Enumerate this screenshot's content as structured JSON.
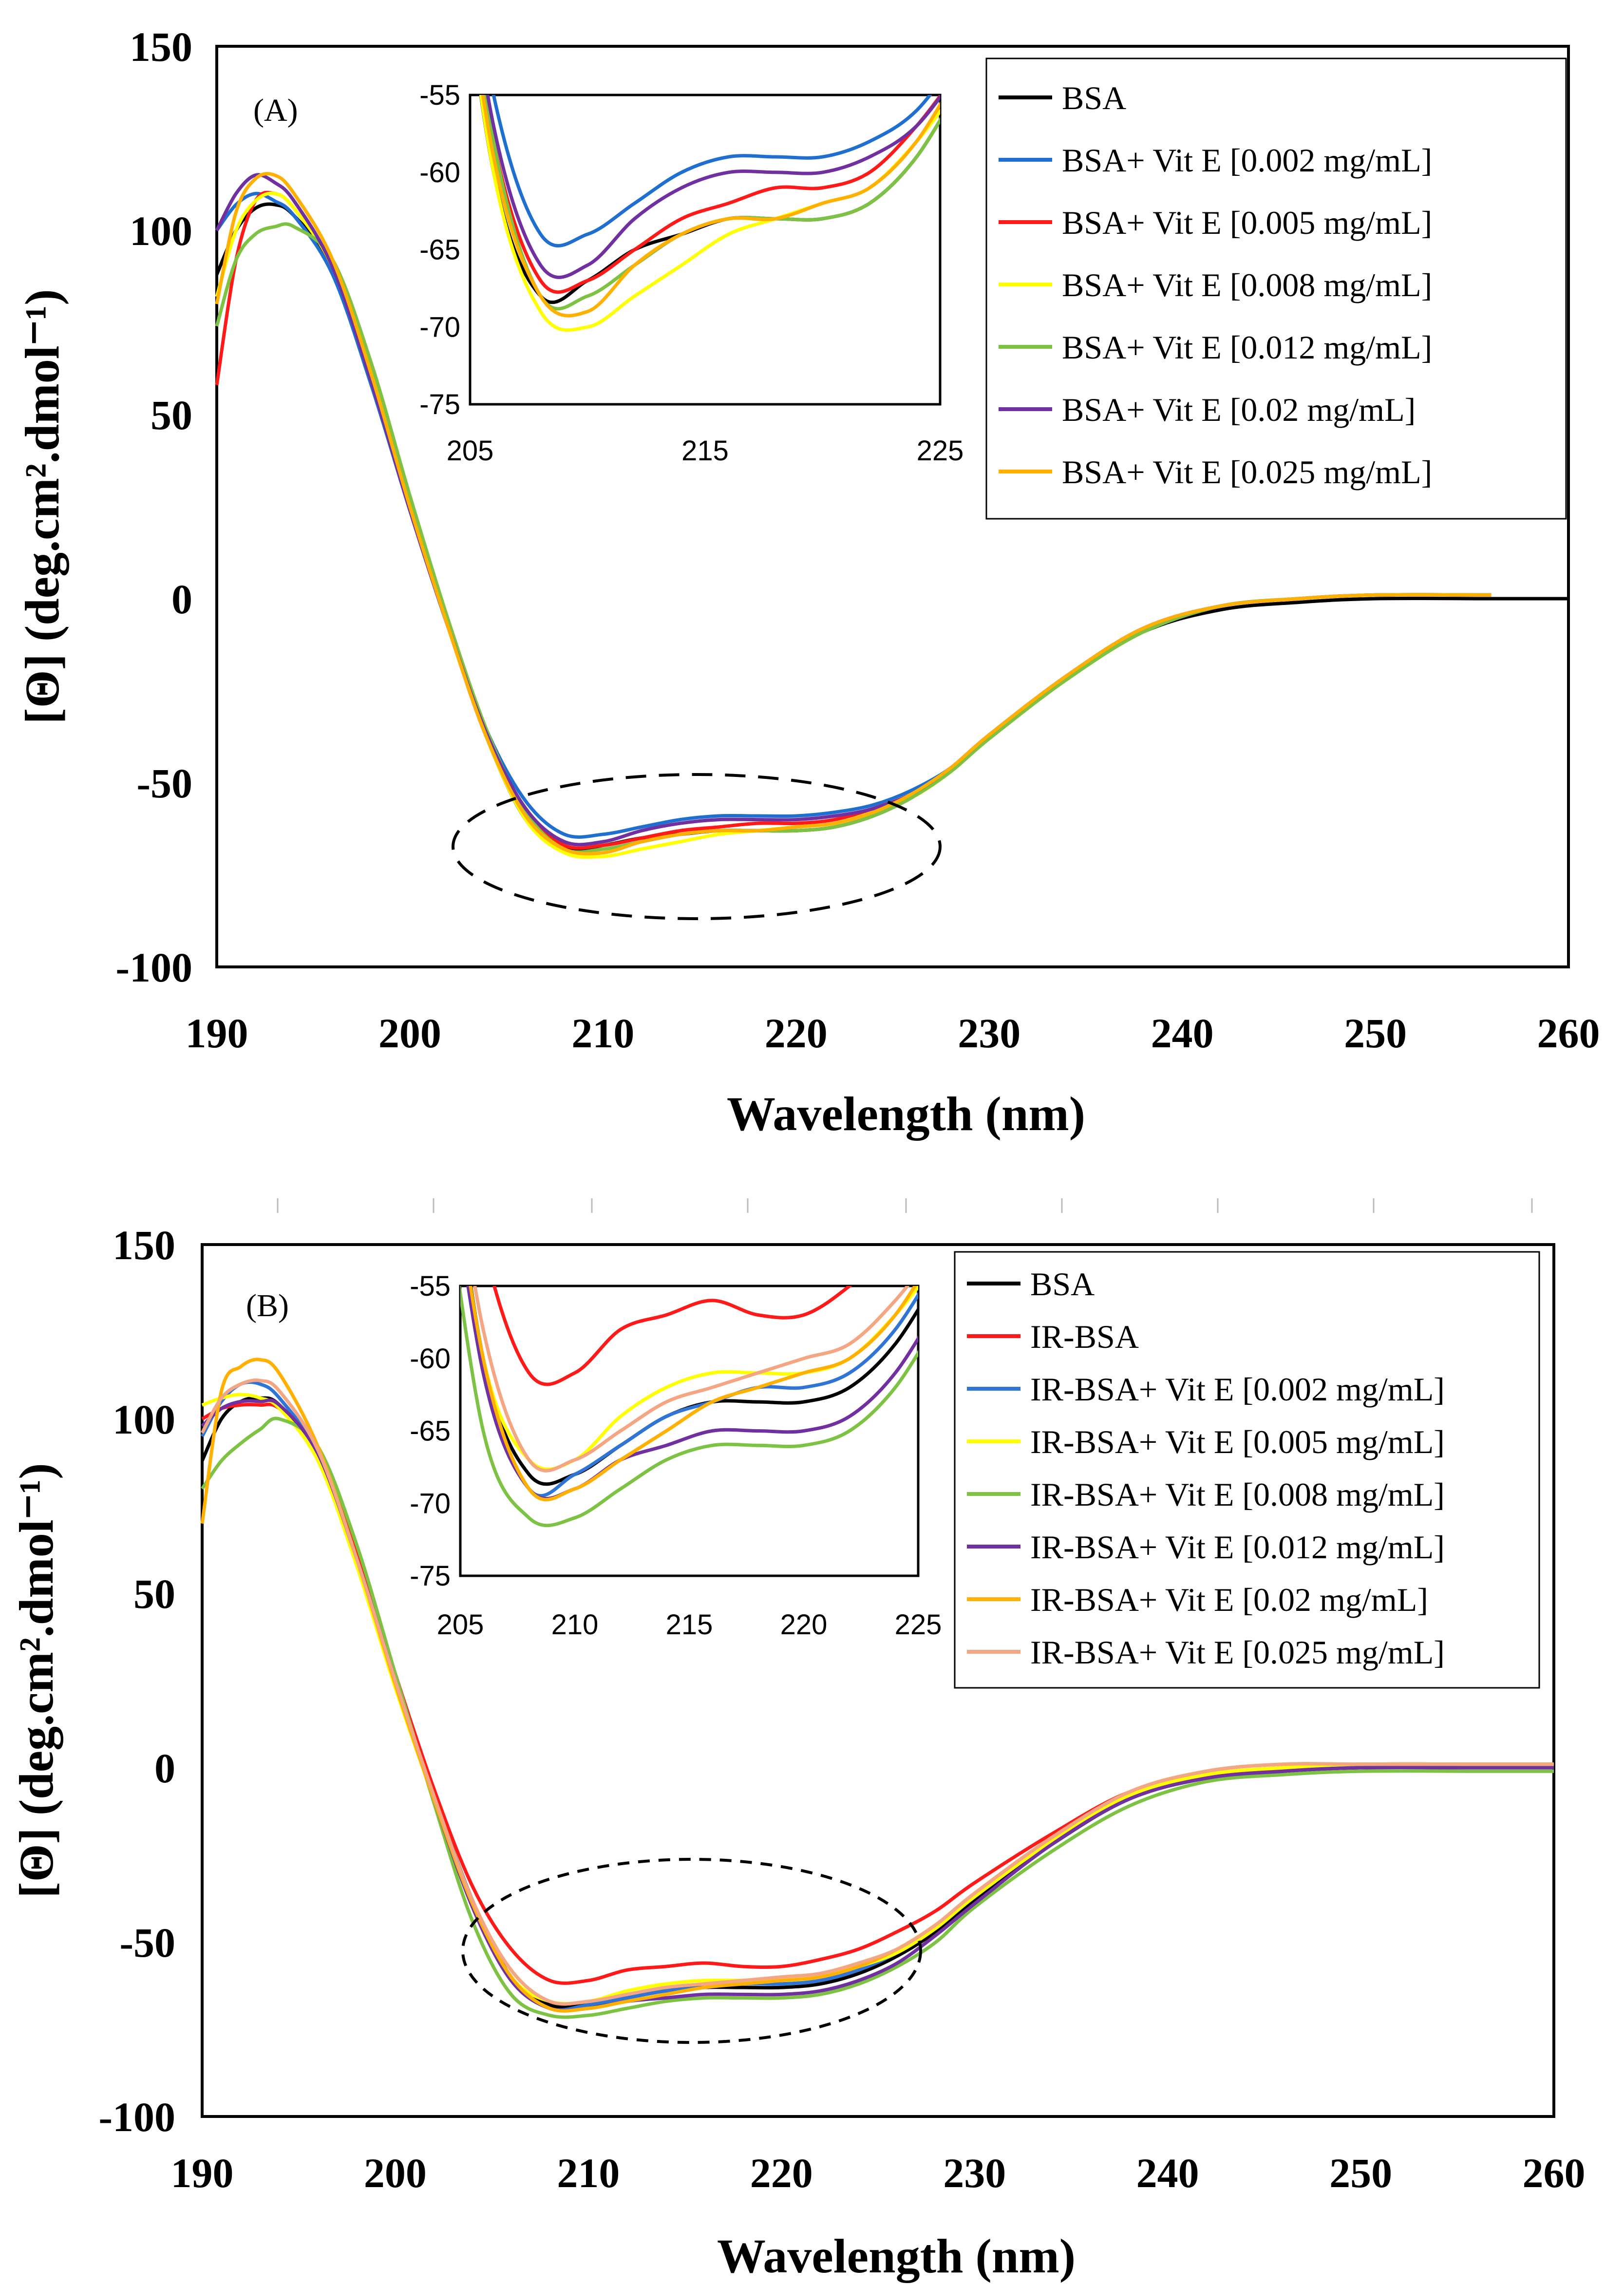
{
  "chart_data": [
    {
      "type": "line",
      "panel_label": "(A)",
      "xlabel": "Wavelength (nm)",
      "ylabel": "[Θ] (deg.cm².dmol⁻¹)",
      "xlim": [
        190,
        260
      ],
      "ylim": [
        -100,
        150
      ],
      "xticks": [
        "190",
        "200",
        "210",
        "220",
        "230",
        "240",
        "250",
        "260"
      ],
      "yticks": [
        "150",
        "100",
        "50",
        "0",
        "-50",
        "-100"
      ],
      "series": [
        {
          "name": "BSA",
          "color": "#000000",
          "x": [
            190,
            191,
            192,
            193,
            194,
            196,
            198,
            200,
            202,
            204,
            206,
            208,
            210,
            212,
            214,
            216,
            218,
            220,
            222,
            224,
            226,
            228,
            230,
            234,
            238,
            242,
            246,
            250,
            256,
            260
          ],
          "y": [
            88,
            100,
            106,
            107,
            104,
            90,
            60,
            25,
            -8,
            -38,
            -60,
            -68,
            -67,
            -65,
            -64,
            -63,
            -63,
            -63,
            -62,
            -59,
            -54,
            -47,
            -38,
            -22,
            -9,
            -3,
            -1,
            0,
            0,
            0
          ]
        },
        {
          "name": "BSA+ Vit E [0.002 mg/mL]",
          "color": "#1f6fd1",
          "x": [
            190,
            191,
            192,
            193,
            194,
            196,
            198,
            200,
            202,
            204,
            206,
            208,
            210,
            212,
            214,
            216,
            218,
            220,
            222,
            224,
            226,
            228,
            230,
            234,
            238,
            242,
            246,
            250,
            256
          ],
          "y": [
            100,
            107,
            110,
            108,
            104,
            88,
            58,
            24,
            -8,
            -36,
            -55,
            -64,
            -64,
            -62,
            -60,
            -59,
            -59,
            -59,
            -58,
            -56,
            -52,
            -46,
            -37,
            -21,
            -8,
            -2,
            0,
            1,
            1
          ]
        },
        {
          "name": "BSA+ Vit E [0.005 mg/mL]",
          "color": "#ff1a1a",
          "x": [
            190,
            191,
            192,
            193,
            194,
            196,
            198,
            200,
            202,
            204,
            206,
            208,
            210,
            212,
            214,
            216,
            218,
            220,
            222,
            224,
            226,
            228,
            230,
            234,
            238,
            242,
            246,
            250,
            256
          ],
          "y": [
            58,
            92,
            108,
            110,
            106,
            90,
            60,
            25,
            -8,
            -38,
            -58,
            -67,
            -67,
            -65,
            -63,
            -62,
            -61,
            -61,
            -60,
            -57,
            -53,
            -46,
            -37,
            -21,
            -8,
            -2,
            0,
            1,
            1
          ]
        },
        {
          "name": "BSA+ Vit E [0.008 mg/mL]",
          "color": "#ffff00",
          "x": [
            190,
            191,
            192,
            193,
            194,
            196,
            198,
            200,
            202,
            204,
            206,
            208,
            210,
            212,
            214,
            216,
            218,
            220,
            222,
            224,
            226,
            228,
            230,
            234,
            238,
            242,
            246,
            250,
            256
          ],
          "y": [
            82,
            100,
            108,
            110,
            106,
            90,
            60,
            25,
            -8,
            -38,
            -60,
            -69,
            -70,
            -68,
            -66,
            -64,
            -63,
            -62,
            -61,
            -58,
            -54,
            -47,
            -38,
            -22,
            -9,
            -2,
            0,
            1,
            1
          ]
        },
        {
          "name": "BSA+ Vit E [0.012 mg/mL]",
          "color": "#7dc242",
          "x": [
            190,
            191,
            192,
            193,
            194,
            196,
            198,
            200,
            202,
            204,
            206,
            208,
            210,
            212,
            214,
            216,
            218,
            220,
            222,
            224,
            226,
            228,
            230,
            234,
            238,
            242,
            246,
            250,
            256
          ],
          "y": [
            74,
            92,
            99,
            101,
            101,
            92,
            64,
            28,
            -6,
            -36,
            -58,
            -68,
            -68,
            -66,
            -64,
            -63,
            -63,
            -63,
            -62,
            -59,
            -54,
            -47,
            -38,
            -22,
            -9,
            -2,
            0,
            1,
            1
          ]
        },
        {
          "name": "BSA+ Vit E [0.02 mg/mL]",
          "color": "#7030a0",
          "x": [
            190,
            191,
            192,
            193,
            194,
            196,
            198,
            200,
            202,
            204,
            206,
            208,
            210,
            212,
            214,
            216,
            218,
            220,
            222,
            224,
            226,
            228,
            230,
            234,
            238,
            242,
            246,
            250,
            256
          ],
          "y": [
            100,
            110,
            115,
            113,
            108,
            90,
            59,
            24,
            -8,
            -37,
            -57,
            -66,
            -66,
            -63,
            -61,
            -60,
            -60,
            -60,
            -59,
            -57,
            -53,
            -46,
            -37,
            -21,
            -8,
            -2,
            0,
            1,
            1
          ]
        },
        {
          "name": "BSA+ Vit E [0.025 mg/mL]",
          "color": "#ffb000",
          "x": [
            190,
            191,
            192,
            193,
            194,
            196,
            198,
            200,
            202,
            204,
            206,
            208,
            210,
            212,
            214,
            216,
            218,
            220,
            222,
            224,
            226,
            228,
            230,
            234,
            238,
            242,
            246,
            250,
            256
          ],
          "y": [
            80,
            105,
            114,
            115,
            110,
            92,
            61,
            25,
            -8,
            -38,
            -59,
            -68,
            -69,
            -66,
            -64,
            -63,
            -63,
            -62,
            -61,
            -58,
            -53,
            -46,
            -37,
            -21,
            -8,
            -2,
            0,
            1,
            1
          ]
        }
      ],
      "inset": {
        "xlim": [
          205,
          225
        ],
        "ylim": [
          -75,
          -55
        ],
        "xticks": [
          "205",
          "215",
          "225"
        ],
        "yticks": [
          "-55",
          "-60",
          "-65",
          "-70",
          "-75"
        ]
      },
      "annotation": "dashed ellipse highlighting the 205-225 nm minima region"
    },
    {
      "type": "line",
      "panel_label": "(B)",
      "xlabel": "Wavelength (nm)",
      "ylabel": "[Θ] (deg.cm².dmol⁻¹)",
      "xlim": [
        190,
        260
      ],
      "ylim": [
        -100,
        150
      ],
      "xticks": [
        "190",
        "200",
        "210",
        "220",
        "230",
        "240",
        "250",
        "260"
      ],
      "yticks": [
        "150",
        "100",
        "50",
        "0",
        "-50",
        "-100"
      ],
      "series": [
        {
          "name": "BSA",
          "color": "#000000",
          "x": [
            190,
            191,
            192,
            193,
            194,
            196,
            198,
            200,
            202,
            204,
            206,
            208,
            210,
            212,
            214,
            216,
            218,
            220,
            222,
            224,
            226,
            228,
            230,
            234,
            238,
            242,
            246,
            250,
            256,
            260
          ],
          "y": [
            88,
            100,
            105,
            106,
            104,
            90,
            60,
            25,
            -8,
            -38,
            -60,
            -68,
            -68,
            -66,
            -64,
            -63,
            -63,
            -63,
            -62,
            -59,
            -54,
            -47,
            -38,
            -22,
            -9,
            -3,
            -1,
            0,
            0,
            0
          ]
        },
        {
          "name": "IR-BSA",
          "color": "#ff1a1a",
          "x": [
            190,
            191,
            192,
            193,
            194,
            196,
            198,
            200,
            202,
            204,
            206,
            208,
            210,
            212,
            214,
            216,
            218,
            220,
            222,
            224,
            226,
            228,
            230,
            234,
            238,
            242,
            246,
            250,
            256,
            260
          ],
          "y": [
            100,
            103,
            104,
            104,
            103,
            92,
            63,
            27,
            -6,
            -34,
            -52,
            -61,
            -61,
            -58,
            -57,
            -56,
            -57,
            -57,
            -55,
            -52,
            -47,
            -41,
            -33,
            -19,
            -7,
            -2,
            0,
            1,
            1,
            1
          ]
        },
        {
          "name": "IR-BSA+ Vit E [0.002 mg/mL]",
          "color": "#2e75d6",
          "x": [
            190,
            191,
            192,
            193,
            194,
            196,
            198,
            200,
            202,
            204,
            206,
            208,
            210,
            212,
            214,
            216,
            218,
            220,
            222,
            224,
            226,
            228,
            230,
            234,
            238,
            242,
            246,
            250,
            256,
            260
          ],
          "y": [
            95,
            105,
            110,
            110,
            106,
            90,
            60,
            24,
            -9,
            -39,
            -60,
            -69,
            -68,
            -66,
            -64,
            -63,
            -62,
            -62,
            -61,
            -58,
            -53,
            -46,
            -37,
            -21,
            -8,
            -2,
            0,
            1,
            1,
            1
          ]
        },
        {
          "name": "IR-BSA+ Vit E [0.005 mg/mL]",
          "color": "#ffff00",
          "x": [
            190,
            191,
            192,
            193,
            194,
            196,
            198,
            200,
            202,
            204,
            206,
            208,
            210,
            212,
            214,
            216,
            218,
            220,
            222,
            224,
            226,
            228,
            230,
            234,
            238,
            242,
            246,
            250,
            256,
            260
          ],
          "y": [
            104,
            106,
            107,
            106,
            103,
            88,
            58,
            23,
            -9,
            -39,
            -60,
            -67,
            -67,
            -64,
            -62,
            -61,
            -61,
            -61,
            -60,
            -57,
            -53,
            -46,
            -37,
            -21,
            -8,
            -2,
            0,
            1,
            1,
            1
          ]
        },
        {
          "name": "IR-BSA+ Vit E [0.008 mg/mL]",
          "color": "#7dc242",
          "x": [
            190,
            191,
            192,
            193,
            194,
            196,
            198,
            200,
            202,
            204,
            206,
            208,
            210,
            212,
            214,
            216,
            218,
            220,
            222,
            224,
            226,
            228,
            230,
            234,
            238,
            242,
            246,
            250,
            256,
            260
          ],
          "y": [
            80,
            88,
            93,
            97,
            100,
            92,
            64,
            27,
            -10,
            -44,
            -65,
            -71,
            -71,
            -69,
            -67,
            -66,
            -66,
            -66,
            -65,
            -62,
            -57,
            -50,
            -40,
            -24,
            -11,
            -4,
            -2,
            -1,
            -1,
            -1
          ]
        },
        {
          "name": "IR-BSA+ Vit E [0.012 mg/mL]",
          "color": "#7030a0",
          "x": [
            190,
            191,
            192,
            193,
            194,
            196,
            198,
            200,
            202,
            204,
            206,
            208,
            210,
            212,
            214,
            216,
            218,
            220,
            222,
            224,
            226,
            228,
            230,
            234,
            238,
            242,
            246,
            250,
            256,
            260
          ],
          "y": [
            98,
            103,
            105,
            105,
            104,
            90,
            60,
            25,
            -9,
            -40,
            -61,
            -69,
            -69,
            -67,
            -66,
            -65,
            -65,
            -65,
            -64,
            -61,
            -56,
            -48,
            -39,
            -22,
            -9,
            -3,
            -1,
            0,
            0,
            0
          ]
        },
        {
          "name": "IR-BSA+ Vit E [0.02 mg/mL]",
          "color": "#ffb000",
          "x": [
            190,
            191,
            192,
            193,
            194,
            196,
            198,
            200,
            202,
            204,
            206,
            208,
            210,
            212,
            214,
            216,
            218,
            220,
            222,
            224,
            226,
            228,
            230,
            234,
            238,
            242,
            246,
            250,
            256,
            260
          ],
          "y": [
            70,
            108,
            115,
            117,
            113,
            92,
            60,
            24,
            -9,
            -39,
            -60,
            -69,
            -69,
            -67,
            -65,
            -63,
            -62,
            -61,
            -60,
            -57,
            -52,
            -45,
            -36,
            -20,
            -7,
            -1,
            1,
            1,
            1,
            1
          ]
        },
        {
          "name": "IR-BSA+ Vit E [0.025 mg/mL]",
          "color": "#f4a582",
          "x": [
            190,
            191,
            192,
            193,
            194,
            196,
            198,
            200,
            202,
            204,
            206,
            208,
            210,
            212,
            214,
            216,
            218,
            220,
            222,
            224,
            226,
            228,
            230,
            234,
            238,
            242,
            246,
            250,
            256,
            260
          ],
          "y": [
            96,
            106,
            110,
            111,
            108,
            91,
            60,
            25,
            -8,
            -38,
            -58,
            -67,
            -67,
            -65,
            -63,
            -62,
            -61,
            -60,
            -59,
            -56,
            -52,
            -45,
            -36,
            -20,
            -7,
            -1,
            1,
            1,
            1,
            1
          ]
        }
      ],
      "inset": {
        "xlim": [
          205,
          225
        ],
        "ylim": [
          -75,
          -55
        ],
        "xticks": [
          "205",
          "210",
          "215",
          "220",
          "225"
        ],
        "yticks": [
          "-55",
          "-60",
          "-65",
          "-70",
          "-75"
        ]
      },
      "annotation": "dashed ellipse highlighting the 205-225 nm minima region"
    }
  ]
}
